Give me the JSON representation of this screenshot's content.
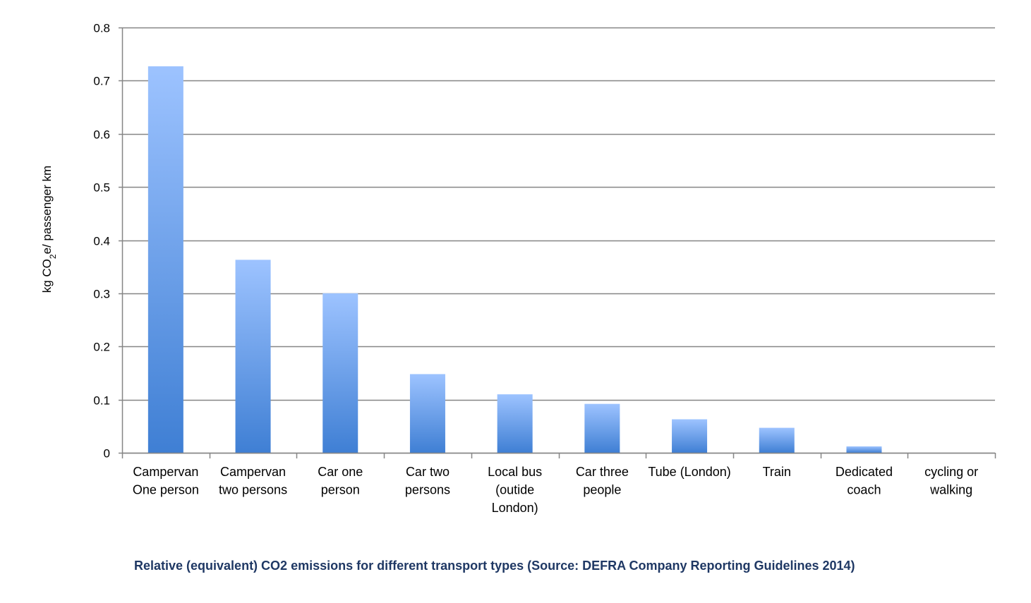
{
  "chart_data": {
    "type": "bar",
    "categories": [
      [
        "Campervan",
        "One person"
      ],
      [
        "Campervan",
        "two persons"
      ],
      [
        "Car one",
        "person"
      ],
      [
        "Car two",
        "persons"
      ],
      [
        "Local bus",
        "(outide",
        "London)"
      ],
      [
        "Car three",
        "people"
      ],
      [
        "Tube (London)"
      ],
      [
        "Train"
      ],
      [
        "Dedicated",
        "coach"
      ],
      [
        "cycling or",
        "walking"
      ]
    ],
    "values": [
      0.727,
      0.363,
      0.3,
      0.148,
      0.11,
      0.092,
      0.063,
      0.047,
      0.012,
      0.0
    ],
    "ylabel": {
      "prefix": "kg CO",
      "subscript": "2",
      "suffix": "e/ passenger km"
    },
    "ylim": [
      0,
      0.8
    ],
    "yticks": [
      "0",
      "0.1",
      "0.2",
      "0.3",
      "0.4",
      "0.5",
      "0.6",
      "0.7",
      "0.8"
    ],
    "grid": true,
    "colors": {
      "bar_top": "#9dc3ff",
      "bar_bottom": "#3f7fd4",
      "grid": "#868686",
      "axis": "#868686"
    }
  },
  "caption": "Relative (equivalent) CO2 emissions for different transport types (Source: DEFRA Company Reporting Guidelines 2014)"
}
